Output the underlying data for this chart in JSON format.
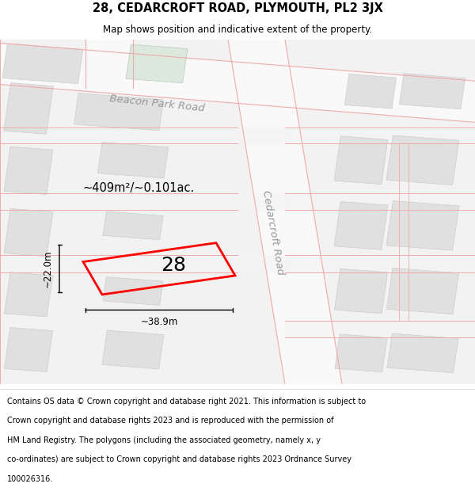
{
  "title_line1": "28, CEDARCROFT ROAD, PLYMOUTH, PL2 3JX",
  "title_line2": "Map shows position and indicative extent of the property.",
  "footer_lines": [
    "Contains OS data © Crown copyright and database right 2021. This information is subject to",
    "Crown copyright and database rights 2023 and is reproduced with the permission of",
    "HM Land Registry. The polygons (including the associated geometry, namely x, y",
    "co-ordinates) are subject to Crown copyright and database rights 2023 Ordnance Survey",
    "100026316."
  ],
  "map_bg": "#f0f0f0",
  "property_color": "#ff0000",
  "property_lw": 2.0,
  "area_text": "~409m²/~0.101ac.",
  "width_text": "~38.9m",
  "height_text": "~22.0m",
  "number_text": "28",
  "beacon_park_road_label": "Beacon Park Road",
  "cedarcroft_road_label": "Cedarcroft Road",
  "road_pink": "#f0aaaa",
  "building_gray": "#e0e0e0",
  "building_edge": "#cccccc",
  "road_white": "#f8f8f8",
  "green_tint": "#dce8dc"
}
